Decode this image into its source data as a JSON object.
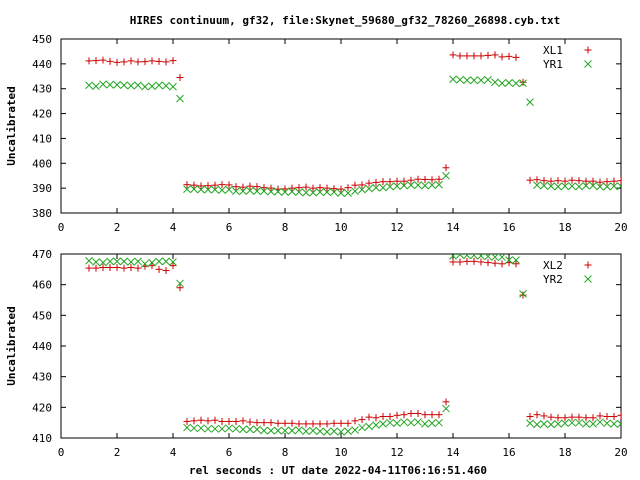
{
  "title": "HIRES continuum, gf32, file:Skynet_59680_gf32_78260_26898.cyb.txt",
  "xlabel": "rel seconds : UT date 2022-04-11T06:16:51.460",
  "colors": {
    "red": "#cc0000",
    "green": "#1fa51f",
    "axis": "#000000"
  },
  "chart_data": [
    {
      "type": "scatter",
      "ylabel": "Uncalibrated",
      "xlim": [
        0,
        20
      ],
      "ylim": [
        380,
        450
      ],
      "xticks": [
        0,
        2,
        4,
        6,
        8,
        10,
        12,
        14,
        16,
        18,
        20
      ],
      "yticks": [
        380,
        390,
        400,
        410,
        420,
        430,
        440,
        450
      ],
      "legend": "top-right",
      "series": [
        {
          "name": "XL1",
          "marker": "plus",
          "color": "#cc0000",
          "x": [
            1.0,
            1.25,
            1.5,
            1.75,
            2.0,
            2.25,
            2.5,
            2.75,
            3.0,
            3.25,
            3.5,
            3.75,
            4.0,
            4.25,
            4.5,
            4.75,
            5.0,
            5.25,
            5.5,
            5.75,
            6.0,
            6.25,
            6.5,
            6.75,
            7.0,
            7.25,
            7.5,
            7.75,
            8.0,
            8.25,
            8.5,
            8.75,
            9.0,
            9.25,
            9.5,
            9.75,
            10.0,
            10.25,
            10.5,
            10.75,
            11.0,
            11.25,
            11.5,
            11.75,
            12.0,
            12.25,
            12.5,
            12.75,
            13.0,
            13.25,
            13.5,
            13.75,
            14.0,
            14.25,
            14.5,
            14.75,
            15.0,
            15.25,
            15.5,
            15.75,
            16.0,
            16.25,
            16.5,
            16.75,
            17.0,
            17.25,
            17.5,
            17.75,
            18.0,
            18.25,
            18.5,
            18.75,
            19.0,
            19.25,
            19.5,
            19.75,
            20.0
          ],
          "y": [
            441.2,
            441.3,
            441.5,
            441.0,
            440.6,
            440.8,
            441.2,
            440.8,
            440.9,
            441.2,
            441.0,
            440.8,
            441.3,
            434.5,
            391.4,
            391.2,
            390.9,
            391.0,
            391.2,
            391.4,
            391.3,
            390.6,
            390.4,
            390.8,
            390.6,
            390.2,
            390.0,
            389.6,
            389.7,
            390.0,
            390.2,
            390.4,
            390.0,
            390.2,
            390.0,
            389.8,
            389.6,
            390.2,
            391.2,
            391.3,
            392.0,
            392.3,
            392.6,
            392.6,
            392.8,
            392.8,
            393.2,
            393.6,
            393.5,
            393.4,
            393.6,
            398.2,
            443.6,
            443.2,
            443.2,
            443.2,
            443.2,
            443.4,
            443.6,
            442.8,
            443.0,
            442.6,
            432.6,
            393.2,
            393.4,
            393.0,
            392.8,
            393.0,
            392.8,
            393.2,
            393.0,
            392.8,
            392.8,
            392.4,
            392.6,
            392.8,
            393.0
          ],
          "x_from": 1.0
        },
        {
          "name": "YR1",
          "marker": "cross",
          "color": "#1fa51f",
          "x": [
            1.0,
            1.25,
            1.5,
            1.75,
            2.0,
            2.25,
            2.5,
            2.75,
            3.0,
            3.25,
            3.5,
            3.75,
            4.0,
            4.25,
            4.5,
            4.75,
            5.0,
            5.25,
            5.5,
            5.75,
            6.0,
            6.25,
            6.5,
            6.75,
            7.0,
            7.25,
            7.5,
            7.75,
            8.0,
            8.25,
            8.5,
            8.75,
            9.0,
            9.25,
            9.5,
            9.75,
            10.0,
            10.25,
            10.5,
            10.75,
            11.0,
            11.25,
            11.5,
            11.75,
            12.0,
            12.25,
            12.5,
            12.75,
            13.0,
            13.25,
            13.5,
            13.75,
            14.0,
            14.25,
            14.5,
            14.75,
            15.0,
            15.25,
            15.5,
            15.75,
            16.0,
            16.25,
            16.5,
            16.75,
            17.0,
            17.25,
            17.5,
            17.75,
            18.0,
            18.25,
            18.5,
            18.75,
            19.0,
            19.25,
            19.5,
            19.75,
            20.0
          ],
          "y": [
            431.4,
            431.0,
            431.8,
            431.6,
            431.6,
            431.4,
            431.2,
            431.4,
            430.8,
            431.0,
            431.4,
            431.2,
            430.8,
            426.0,
            389.6,
            389.6,
            389.4,
            389.4,
            389.4,
            389.2,
            389.4,
            388.8,
            388.8,
            389.0,
            388.8,
            388.8,
            388.6,
            388.6,
            388.4,
            388.6,
            388.4,
            388.2,
            388.2,
            388.4,
            388.4,
            388.4,
            388.0,
            388.0,
            388.8,
            389.4,
            389.8,
            390.2,
            390.2,
            390.6,
            390.8,
            391.0,
            391.2,
            391.2,
            391.0,
            391.2,
            391.4,
            395.0,
            433.8,
            433.6,
            433.4,
            433.4,
            433.4,
            433.6,
            432.6,
            432.2,
            432.4,
            432.2,
            432.2,
            424.6,
            391.2,
            391.0,
            390.8,
            390.6,
            390.8,
            390.8,
            390.6,
            391.0,
            391.0,
            390.6,
            390.6,
            390.8,
            390.8
          ]
        }
      ]
    },
    {
      "type": "scatter",
      "ylabel": "Uncalibrated",
      "xlim": [
        0,
        20
      ],
      "ylim": [
        410,
        470
      ],
      "xticks": [
        0,
        2,
        4,
        6,
        8,
        10,
        12,
        14,
        16,
        18,
        20
      ],
      "yticks": [
        410,
        420,
        430,
        440,
        450,
        460,
        470
      ],
      "legend": "top-right",
      "series": [
        {
          "name": "XL2",
          "marker": "plus",
          "color": "#cc0000",
          "x": [
            1.0,
            1.25,
            1.5,
            1.75,
            2.0,
            2.25,
            2.5,
            2.75,
            3.0,
            3.25,
            3.5,
            3.75,
            4.0,
            4.25,
            4.5,
            4.75,
            5.0,
            5.25,
            5.5,
            5.75,
            6.0,
            6.25,
            6.5,
            6.75,
            7.0,
            7.25,
            7.5,
            7.75,
            8.0,
            8.25,
            8.5,
            8.75,
            9.0,
            9.25,
            9.5,
            9.75,
            10.0,
            10.25,
            10.5,
            10.75,
            11.0,
            11.25,
            11.5,
            11.75,
            12.0,
            12.25,
            12.5,
            12.75,
            13.0,
            13.25,
            13.5,
            13.75,
            14.0,
            14.25,
            14.5,
            14.75,
            15.0,
            15.25,
            15.5,
            15.75,
            16.0,
            16.25,
            16.5,
            16.75,
            17.0,
            17.25,
            17.5,
            17.75,
            18.0,
            18.25,
            18.5,
            18.75,
            19.0,
            19.25,
            19.5,
            19.75,
            20.0
          ],
          "y": [
            465.4,
            465.4,
            465.6,
            465.6,
            465.6,
            465.4,
            465.6,
            465.4,
            466.0,
            466.2,
            465.0,
            464.6,
            466.2,
            459.0,
            415.4,
            415.6,
            415.8,
            415.6,
            415.8,
            415.4,
            415.4,
            415.4,
            415.6,
            415.2,
            415.0,
            415.0,
            415.0,
            414.8,
            414.8,
            414.8,
            414.6,
            414.6,
            414.6,
            414.6,
            414.6,
            414.8,
            414.8,
            414.8,
            415.6,
            416.0,
            416.8,
            416.6,
            417.0,
            417.0,
            417.4,
            417.6,
            418.0,
            418.0,
            417.6,
            417.6,
            417.6,
            421.8,
            467.4,
            467.4,
            467.6,
            467.6,
            467.4,
            467.2,
            467.0,
            466.8,
            467.2,
            466.8,
            456.6,
            417.0,
            417.6,
            417.2,
            416.8,
            416.6,
            416.6,
            416.8,
            416.8,
            416.6,
            416.6,
            417.2,
            417.0,
            417.0,
            417.4
          ]
        },
        {
          "name": "YR2",
          "marker": "cross",
          "color": "#1fa51f",
          "x": [
            1.0,
            1.25,
            1.5,
            1.75,
            2.0,
            2.25,
            2.5,
            2.75,
            3.0,
            3.25,
            3.5,
            3.75,
            4.0,
            4.25,
            4.5,
            4.75,
            5.0,
            5.25,
            5.5,
            5.75,
            6.0,
            6.25,
            6.5,
            6.75,
            7.0,
            7.25,
            7.5,
            7.75,
            8.0,
            8.25,
            8.5,
            8.75,
            9.0,
            9.25,
            9.5,
            9.75,
            10.0,
            10.25,
            10.5,
            10.75,
            11.0,
            11.25,
            11.5,
            11.75,
            12.0,
            12.25,
            12.5,
            12.75,
            13.0,
            13.25,
            13.5,
            13.75,
            14.0,
            14.25,
            14.5,
            14.75,
            15.0,
            15.25,
            15.5,
            15.75,
            16.0,
            16.25,
            16.5,
            16.75,
            17.0,
            17.25,
            17.5,
            17.75,
            18.0,
            18.25,
            18.5,
            18.75,
            19.0,
            19.25,
            19.5,
            19.75,
            20.0
          ],
          "y": [
            467.8,
            467.4,
            467.2,
            467.6,
            467.6,
            467.6,
            467.4,
            467.6,
            466.8,
            467.2,
            467.6,
            467.6,
            467.4,
            460.4,
            413.4,
            413.2,
            413.2,
            413.0,
            413.0,
            413.0,
            413.2,
            413.0,
            412.8,
            412.8,
            412.8,
            412.4,
            412.4,
            412.4,
            412.4,
            412.4,
            412.6,
            412.2,
            412.4,
            412.2,
            412.0,
            412.2,
            412.0,
            412.2,
            412.6,
            413.4,
            413.8,
            414.2,
            414.6,
            415.0,
            414.8,
            415.2,
            415.0,
            415.2,
            414.6,
            414.8,
            415.0,
            419.6,
            469.4,
            469.8,
            469.6,
            469.6,
            469.4,
            469.2,
            469.0,
            469.0,
            468.0,
            468.0,
            457.0,
            414.8,
            414.4,
            414.6,
            414.4,
            414.6,
            414.8,
            415.0,
            415.0,
            414.6,
            414.6,
            415.2,
            414.8,
            414.6,
            414.6
          ]
        }
      ]
    }
  ]
}
